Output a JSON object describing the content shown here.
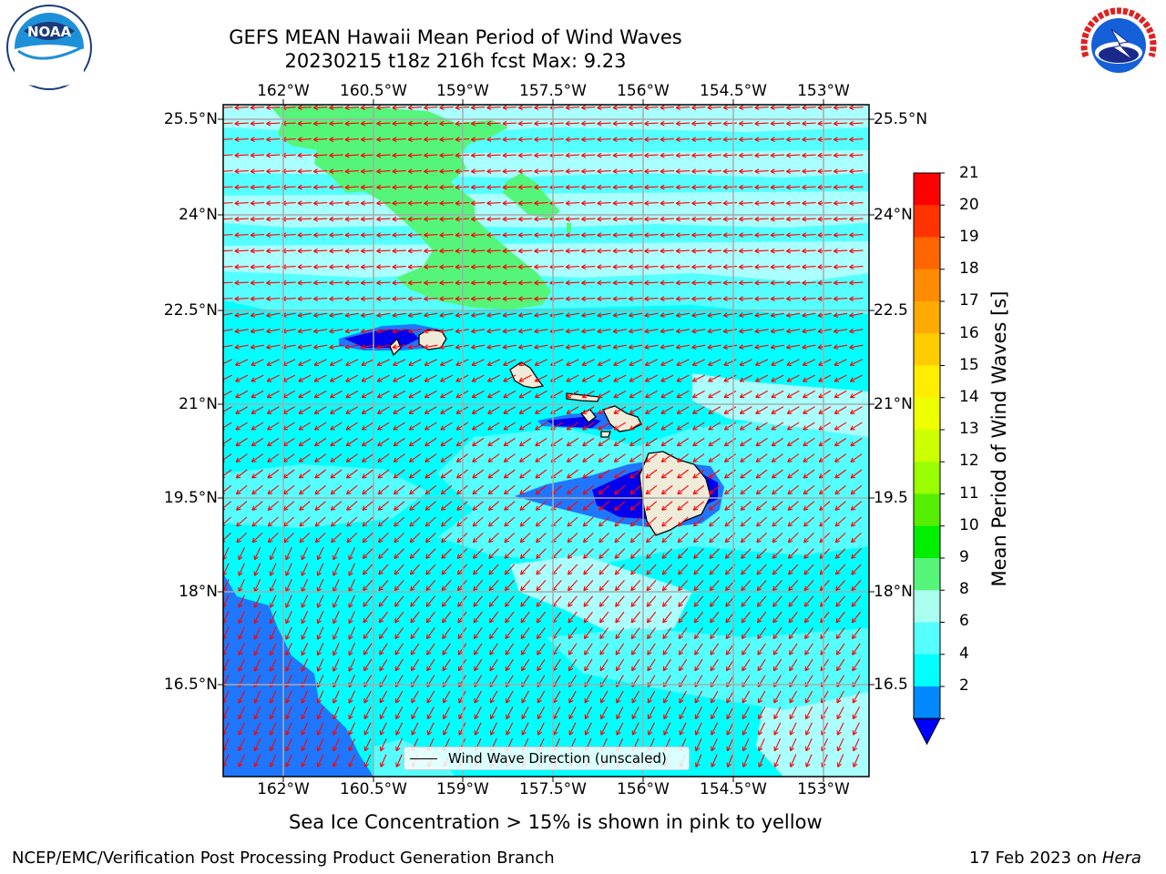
{
  "header": {
    "title_line1": "GEFS MEAN Hawaii Mean Period of Wind Waves",
    "title_line2": "20230215 t18z 216h fcst   Max: 9.23"
  },
  "logos": {
    "noaa_text": "NOAA",
    "nws_text": "NATIONAL WEATHER SERVICE"
  },
  "axes": {
    "lon_labels": [
      "162°W",
      "160.5°W",
      "159°W",
      "157.5°W",
      "156°W",
      "154.5°W",
      "153°W"
    ],
    "lat_labels": [
      "25.5°N",
      "24°N",
      "22.5°N",
      "21°N",
      "19.5°N",
      "18°N",
      "16.5°N"
    ],
    "lat_labels_right": [
      "25.5°N",
      "24°N",
      "22.5",
      "21°N",
      "19.5",
      "18°N",
      "16.5"
    ]
  },
  "legend": {
    "wind_wave_label": "Wind Wave Direction (unscaled)"
  },
  "colorbar": {
    "title": "Mean Period of Wind Waves [s]",
    "ticks": [
      "21",
      "20",
      "19",
      "18",
      "17",
      "16",
      "15",
      "14",
      "13",
      "12",
      "11",
      "10",
      "9",
      "8",
      "6",
      "4",
      "2"
    ],
    "colors": [
      "#ff0000",
      "#ff3300",
      "#ff6600",
      "#ff8c00",
      "#ffaa00",
      "#ffcc00",
      "#ffee00",
      "#eeff00",
      "#ccff00",
      "#99ff00",
      "#55ee00",
      "#00ee00",
      "#55f57a",
      "#aaffee",
      "#55ffff",
      "#00ffff",
      "#0088ff"
    ],
    "under_color": "#0000ff"
  },
  "map_colors": {
    "range_2_4": "#1f77ff",
    "range_4_6": "#00ffff",
    "range_6_8": "#55ffff",
    "range_8_9": "#aaffff",
    "range_9_10": "#55f57a",
    "below_2": "#0000ee",
    "land": "#efebd9",
    "arrows": "#ff0000",
    "grid": "#aaaaaa"
  },
  "captions": {
    "sea_ice": "Sea Ice Concentration > 15% is shown in pink to yellow",
    "footer_left": "NCEP/EMC/Verification Post Processing Product Generation Branch",
    "footer_date": "17 Feb 2023 on ",
    "footer_host": "Hera"
  }
}
